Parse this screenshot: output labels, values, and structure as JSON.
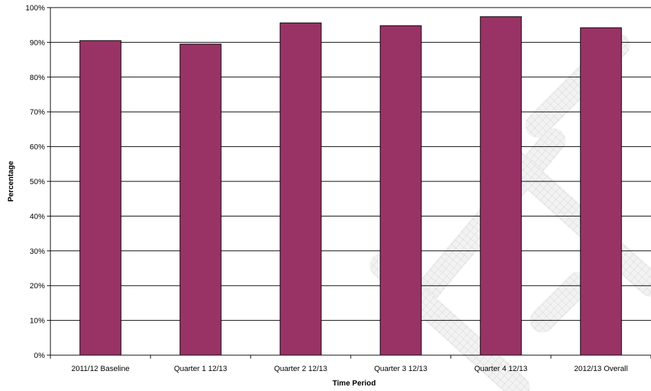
{
  "chart_data": {
    "type": "bar",
    "title": "",
    "xlabel": "Time Period",
    "ylabel": "Percentage",
    "categories": [
      "2011/12 Baseline",
      "Quarter 1 12/13",
      "Quarter 2 12/13",
      "Quarter 3 12/13",
      "Quarter 4 12/13",
      "2012/13 Overall"
    ],
    "values": [
      90.5,
      89.5,
      95.6,
      94.8,
      97.4,
      94.2
    ],
    "ylim": [
      0,
      100
    ],
    "yticks": [
      0,
      10,
      20,
      30,
      40,
      50,
      60,
      70,
      80,
      90,
      100
    ],
    "ytick_labels": [
      "0%",
      "10%",
      "20%",
      "30%",
      "40%",
      "50%",
      "60%",
      "70%",
      "80%",
      "90%",
      "100%"
    ],
    "grid": true,
    "legend": "none",
    "colors": {
      "bar": "#993366",
      "bar_edge": "#000000",
      "grid": "#000000",
      "axis": "#000000"
    }
  }
}
